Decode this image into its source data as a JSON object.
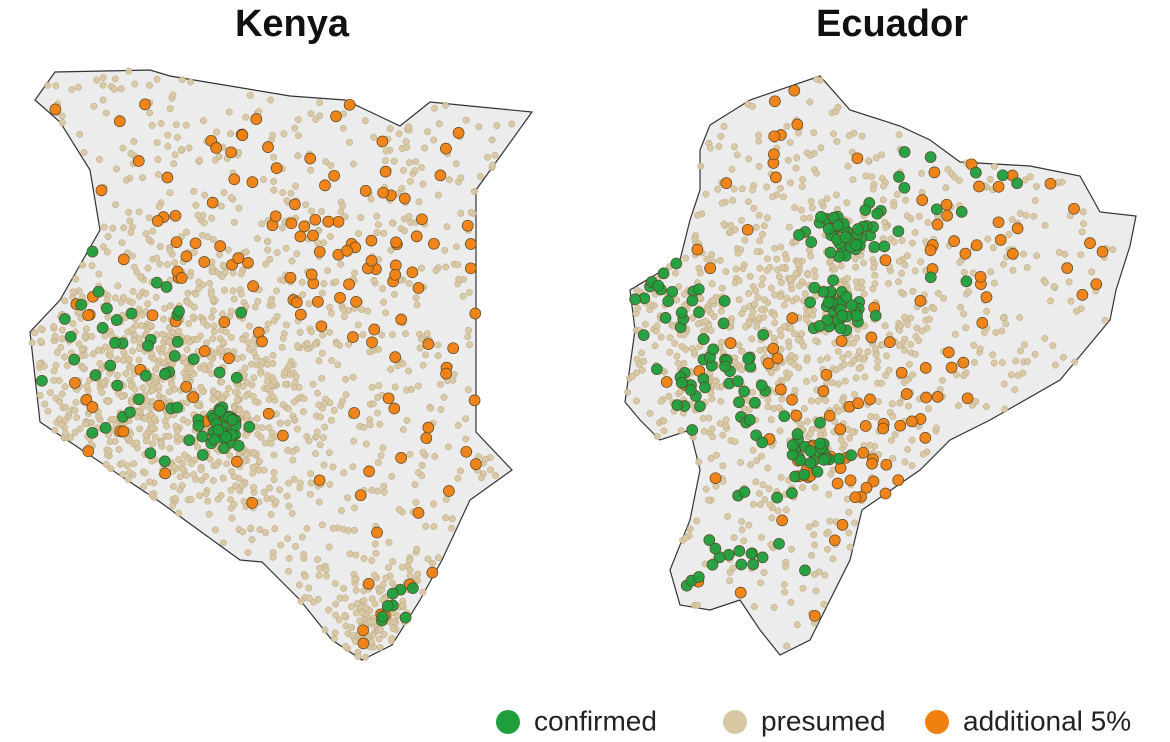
{
  "maps": [
    {
      "title": "Kenya"
    },
    {
      "title": "Ecuador"
    }
  ],
  "legend": [
    {
      "label": "confirmed",
      "color": "#1f9e3c"
    },
    {
      "label": "presumed",
      "color": "#d8c7a3"
    },
    {
      "label": "additional 5%",
      "color": "#f08010"
    }
  ]
}
